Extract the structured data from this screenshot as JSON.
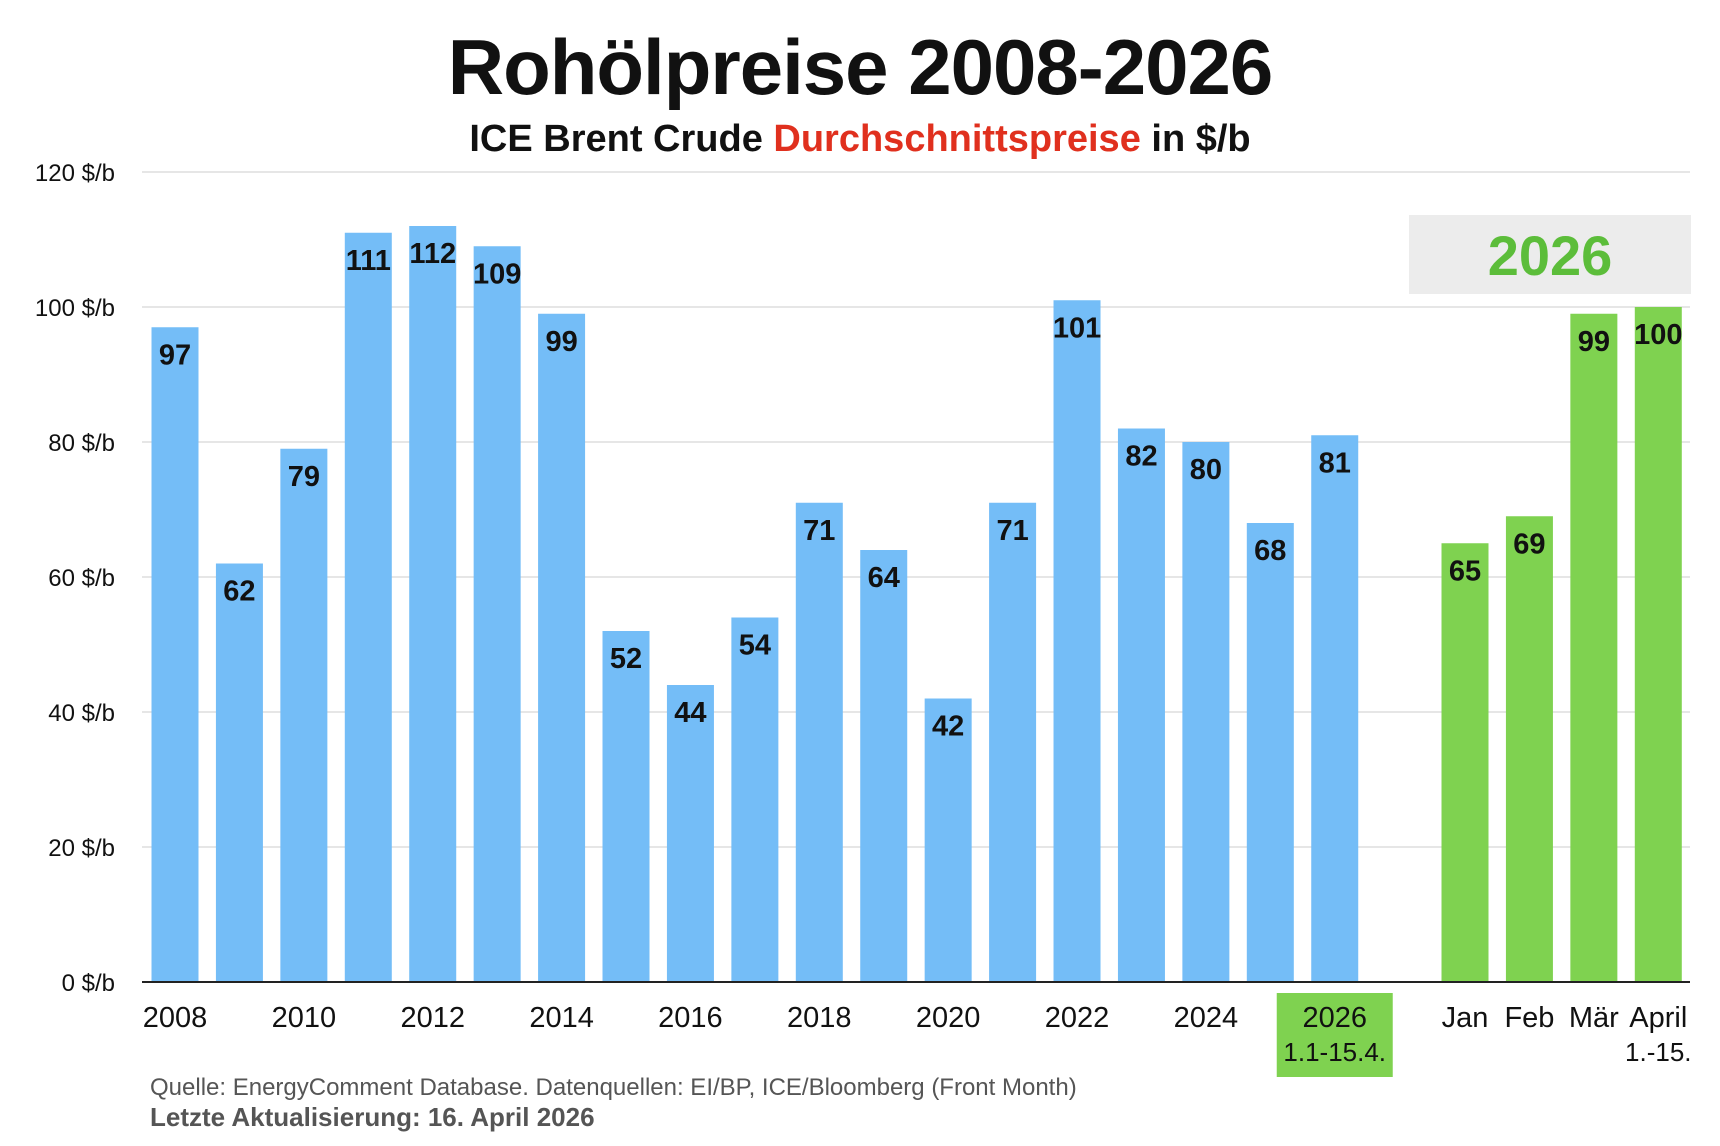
{
  "header": {
    "title": "Rohölpreise 2008-2026",
    "subtitle_part1": "ICE Brent Crude ",
    "subtitle_highlight": "Durchschnittspreise",
    "subtitle_part2": " in $/b"
  },
  "footer": {
    "source": "Quelle: EnergyComment Database. Datenquellen: EI/BP, ICE/Bloomberg (Front Month)",
    "updated": "Letzte Aktualisierung: 16. April 2026"
  },
  "colors": {
    "annual_bar": "#74bdf7",
    "monthly_bar": "#7fd250",
    "highlight_text": "#e0301e",
    "inset_text": "#5cbd3a",
    "inset_box": "#ececec",
    "grid": "#cccccc"
  },
  "chart_data": {
    "type": "bar",
    "title": "Rohölpreise 2008-2026",
    "subtitle": "ICE Brent Crude Durchschnittspreise in $/b",
    "ylim": [
      0,
      120
    ],
    "yticks": [
      0,
      20,
      40,
      60,
      80,
      100,
      120
    ],
    "ytick_labels": [
      "0 $/b",
      "20 $/b",
      "40 $/b",
      "60 $/b",
      "80 $/b",
      "100 $/b",
      "120 $/b"
    ],
    "grid": true,
    "annual": {
      "categories": [
        "2008",
        "2009",
        "2010",
        "2011",
        "2012",
        "2013",
        "2014",
        "2015",
        "2016",
        "2017",
        "2018",
        "2019",
        "2020",
        "2021",
        "2022",
        "2023",
        "2024",
        "2025",
        "2026"
      ],
      "values": [
        97,
        62,
        79,
        111,
        112,
        109,
        99,
        52,
        44,
        54,
        71,
        64,
        42,
        71,
        101,
        82,
        80,
        68,
        81
      ],
      "tick_labels": [
        {
          "category": "2008",
          "text": "2008"
        },
        {
          "category": "2010",
          "text": "2010"
        },
        {
          "category": "2012",
          "text": "2012"
        },
        {
          "category": "2014",
          "text": "2014"
        },
        {
          "category": "2016",
          "text": "2016"
        },
        {
          "category": "2018",
          "text": "2018"
        },
        {
          "category": "2020",
          "text": "2020"
        },
        {
          "category": "2022",
          "text": "2022"
        },
        {
          "category": "2024",
          "text": "2024"
        },
        {
          "category": "2026",
          "text": "2026",
          "sub": "1.1-15.4.",
          "highlight": true
        }
      ]
    },
    "monthly": {
      "inset_label": "2026",
      "categories": [
        "Jan",
        "Feb",
        "Mär",
        "April"
      ],
      "values": [
        65,
        69,
        99,
        100
      ],
      "tick_labels": [
        {
          "text": "Jan"
        },
        {
          "text": "Feb"
        },
        {
          "text": "Mär"
        },
        {
          "text": "April",
          "sub": "1.-15."
        }
      ]
    }
  }
}
